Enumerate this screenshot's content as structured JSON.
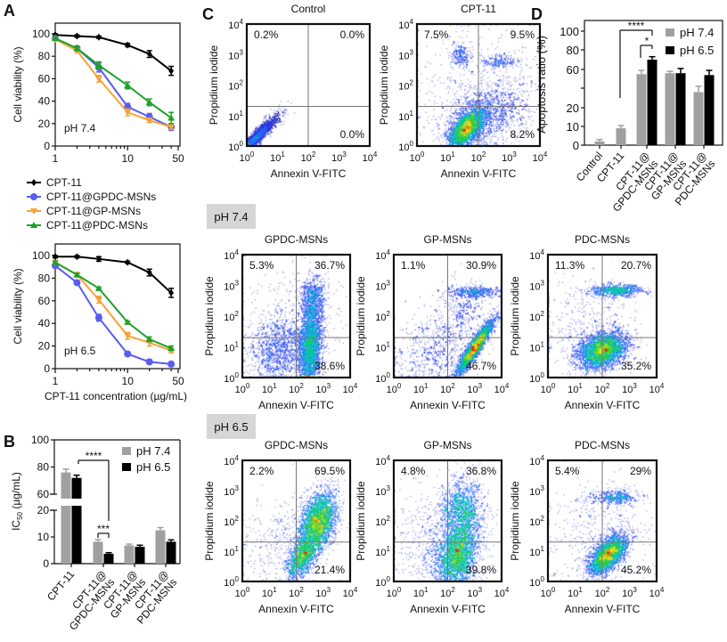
{
  "panel_labels": {
    "a": "A",
    "b": "B",
    "c": "C",
    "d": "D"
  },
  "groups": {
    "ph74": "pH 7.4",
    "ph65": "pH 6.5"
  },
  "chart_data": [
    {
      "type": "line",
      "panel": "A",
      "annotation": "pH 7.4",
      "ylabel": "Cell viability (%)",
      "xlabel": "",
      "xscale": "log",
      "xlim": [
        1,
        50
      ],
      "xticks": [
        "1",
        "10",
        "50"
      ],
      "ylim": [
        0,
        100
      ],
      "yticks": [
        "0",
        "20",
        "40",
        "60",
        "80",
        "100"
      ],
      "x": [
        1,
        2,
        4,
        10,
        20,
        40
      ],
      "series": [
        {
          "name": "CPT-11",
          "color": "#000000",
          "marker": "diamond",
          "values": [
            99,
            98,
            97,
            90,
            82,
            67
          ],
          "errors": [
            1,
            1,
            1,
            1.5,
            3,
            4
          ]
        },
        {
          "name": "CPT-11@GPDC-MSNs",
          "color": "#5a5cf0",
          "marker": "circle",
          "values": [
            96,
            87,
            70,
            35,
            26,
            17
          ],
          "errors": [
            1,
            2,
            4,
            3,
            3,
            3
          ]
        },
        {
          "name": "CPT-11@GP-MSNs",
          "color": "#f5a33a",
          "marker": "triangle-down",
          "values": [
            95,
            85,
            60,
            30,
            23,
            17
          ],
          "errors": [
            1,
            2,
            3,
            3,
            2,
            2
          ]
        },
        {
          "name": "CPT-11@PDC-MSNs",
          "color": "#1fa12a",
          "marker": "triangle-up",
          "values": [
            96,
            87,
            72,
            54,
            39,
            25
          ],
          "errors": [
            1,
            2,
            3,
            3,
            3,
            5
          ]
        }
      ]
    },
    {
      "type": "line",
      "panel": "A",
      "annotation": "pH 6.5",
      "ylabel": "Cell viability (%)",
      "xlabel": "CPT-11 concentration (µg/mL)",
      "xscale": "log",
      "xlim": [
        1,
        50
      ],
      "xticks": [
        "1",
        "10",
        "50"
      ],
      "ylim": [
        0,
        100
      ],
      "yticks": [
        "0",
        "20",
        "40",
        "60",
        "80",
        "100"
      ],
      "x": [
        1,
        2,
        4,
        10,
        20,
        40
      ],
      "series": [
        {
          "name": "CPT-11",
          "color": "#000000",
          "marker": "diamond",
          "values": [
            99,
            99,
            97,
            94,
            85,
            67
          ],
          "errors": [
            1,
            1,
            2,
            1,
            3,
            4
          ]
        },
        {
          "name": "CPT-11@GPDC-MSNs",
          "color": "#5a5cf0",
          "marker": "circle",
          "values": [
            91,
            76,
            45,
            13,
            6,
            4
          ],
          "errors": [
            1,
            1,
            3,
            1,
            2,
            2
          ]
        },
        {
          "name": "CPT-11@GP-MSNs",
          "color": "#f5a33a",
          "marker": "triangle-down",
          "values": [
            94,
            83,
            61,
            29,
            23,
            16
          ],
          "errors": [
            1,
            2,
            3,
            3,
            3,
            2
          ]
        },
        {
          "name": "CPT-11@PDC-MSNs",
          "color": "#1fa12a",
          "marker": "triangle-up",
          "values": [
            94,
            83,
            71,
            41,
            26,
            18
          ],
          "errors": [
            1,
            1,
            1,
            1,
            2,
            2
          ]
        }
      ]
    },
    {
      "type": "bar",
      "panel": "B",
      "ylabel_main": "IC",
      "ylabel_sub": "50",
      "ylabel_unit": " (µg/mL)",
      "yticks": [
        "0",
        "10",
        "20",
        "60",
        "80",
        "100"
      ],
      "ybreak": [
        20,
        60
      ],
      "ylim": [
        0,
        100
      ],
      "categories": [
        [
          "CPT-11"
        ],
        [
          "CPT-11@",
          "GPDC-MSNs"
        ],
        [
          "CPT-11@",
          "GP-MSNs"
        ],
        [
          "CPT-11@",
          "PDC-MSNs"
        ]
      ],
      "legend": "top-right",
      "series": [
        {
          "name": "pH 7.4",
          "color": "#a0a0a0",
          "values": [
            76,
            8.2,
            6.8,
            12.5
          ],
          "errors": [
            2.5,
            0.8,
            0.5,
            1.0
          ]
        },
        {
          "name": "pH 6.5",
          "color": "#000000",
          "values": [
            72,
            3.7,
            6.3,
            8.2
          ],
          "errors": [
            2.0,
            0.4,
            0.6,
            0.7
          ]
        }
      ],
      "significance": [
        {
          "label": "****"
        },
        {
          "label": "***"
        }
      ]
    },
    {
      "type": "bar",
      "panel": "D",
      "ylabel": "Apoptosis ratio (%)",
      "yticks": [
        0,
        10,
        20,
        40,
        60,
        80,
        100
      ],
      "ytick_labels": [
        "0",
        "10",
        "20",
        "",
        "60",
        "80",
        "100"
      ],
      "ylim": [
        0,
        100
      ],
      "categories": [
        [
          "Control"
        ],
        [
          "CPT-11"
        ],
        [
          "CPT-11@",
          "GPDC-MSNs"
        ],
        [
          "CPT-11@",
          "GP-MSNs"
        ],
        [
          "CPT-11@",
          "PDC-MSNs"
        ]
      ],
      "legend": "top-right",
      "series": [
        {
          "name": "pH 7.4",
          "color": "#a0a0a0",
          "values": [
            2,
            9,
            55,
            56,
            36
          ],
          "errors": [
            1,
            1.5,
            4,
            2,
            6
          ]
        },
        {
          "name": "pH 6.5",
          "color": "#000000",
          "values": [
            null,
            null,
            70,
            56,
            54
          ],
          "errors": [
            null,
            null,
            3,
            5,
            5
          ]
        }
      ],
      "significance": [
        {
          "label": "****"
        },
        {
          "label": "*"
        }
      ]
    },
    {
      "type": "scatter",
      "panel": "C",
      "group": "",
      "title": "Control",
      "xlabel": "Annexin V-FITC",
      "ylabel": "Propidium iodide",
      "scale": "log",
      "xlim": [
        1,
        10000
      ],
      "ylim": [
        1,
        10000
      ],
      "tick_base": "10",
      "tick_exponents": [
        "0",
        "1",
        "2",
        "3",
        "4"
      ],
      "gates": {
        "x": 100,
        "y": 20
      },
      "quadrants": {
        "upper_left": "0.2%",
        "upper_right": "0.0%",
        "lower_right": "0.0%"
      }
    },
    {
      "type": "scatter",
      "panel": "C",
      "group": "",
      "title": "CPT-11",
      "xlabel": "Annexin V-FITC",
      "ylabel": "Propidium iodide",
      "scale": "log",
      "xlim": [
        1,
        10000
      ],
      "ylim": [
        1,
        10000
      ],
      "tick_base": "10",
      "tick_exponents": [
        "0",
        "1",
        "2",
        "3",
        "4"
      ],
      "gates": {
        "x": 100,
        "y": 20
      },
      "quadrants": {
        "upper_left": "7.5%",
        "upper_right": "9.5%",
        "lower_right": "8.2%"
      }
    },
    {
      "type": "scatter",
      "panel": "C",
      "group": "pH 7.4",
      "title": "GPDC-MSNs",
      "xlabel": "Annexin V-FITC",
      "ylabel": "Propidium iodide",
      "scale": "log",
      "xlim": [
        1,
        10000
      ],
      "ylim": [
        1,
        10000
      ],
      "tick_base": "10",
      "tick_exponents": [
        "0",
        "1",
        "2",
        "3",
        "4"
      ],
      "gates": {
        "x": 100,
        "y": 20
      },
      "quadrants": {
        "upper_left": "5.3%",
        "upper_right": "36.7%",
        "lower_right": "38.6%"
      }
    },
    {
      "type": "scatter",
      "panel": "C",
      "group": "pH 7.4",
      "title": "GP-MSNs",
      "xlabel": "Annexin V-FITC",
      "ylabel": "Propidium iodide",
      "scale": "log",
      "xlim": [
        1,
        10000
      ],
      "ylim": [
        1,
        10000
      ],
      "tick_base": "10",
      "tick_exponents": [
        "0",
        "1",
        "2",
        "3",
        "4"
      ],
      "gates": {
        "x": 100,
        "y": 20
      },
      "quadrants": {
        "upper_left": "1.1%",
        "upper_right": "30.9%",
        "lower_right": "46.7%"
      }
    },
    {
      "type": "scatter",
      "panel": "C",
      "group": "pH 7.4",
      "title": "PDC-MSNs",
      "xlabel": "Annexin V-FITC",
      "ylabel": "Propidium iodide",
      "scale": "log",
      "xlim": [
        1,
        10000
      ],
      "ylim": [
        1,
        10000
      ],
      "tick_base": "10",
      "tick_exponents": [
        "0",
        "1",
        "2",
        "3",
        "4"
      ],
      "gates": {
        "x": 100,
        "y": 20
      },
      "quadrants": {
        "upper_left": "11.3%",
        "upper_right": "20.7%",
        "lower_right": "35.2%"
      }
    },
    {
      "type": "scatter",
      "panel": "C",
      "group": "pH 6.5",
      "title": "GPDC-MSNs",
      "xlabel": "Annexin V-FITC",
      "ylabel": "Propidium iodide",
      "scale": "log",
      "xlim": [
        1,
        10000
      ],
      "ylim": [
        1,
        10000
      ],
      "tick_base": "10",
      "tick_exponents": [
        "0",
        "1",
        "2",
        "3",
        "4"
      ],
      "gates": {
        "x": 100,
        "y": 20
      },
      "quadrants": {
        "upper_left": "2.2%",
        "upper_right": "69.5%",
        "lower_right": "21.4%"
      }
    },
    {
      "type": "scatter",
      "panel": "C",
      "group": "pH 6.5",
      "title": "GP-MSNs",
      "xlabel": "Annexin V-FITC",
      "ylabel": "Propidium iodide",
      "scale": "log",
      "xlim": [
        1,
        10000
      ],
      "ylim": [
        1,
        10000
      ],
      "tick_base": "10",
      "tick_exponents": [
        "0",
        "1",
        "2",
        "3",
        "4"
      ],
      "gates": {
        "x": 100,
        "y": 20
      },
      "quadrants": {
        "upper_left": "4.8%",
        "upper_right": "36.8%",
        "lower_right": "39.8%"
      }
    },
    {
      "type": "scatter",
      "panel": "C",
      "group": "pH 6.5",
      "title": "PDC-MSNs",
      "xlabel": "Annexin V-FITC",
      "ylabel": "Propidium iodide",
      "scale": "log",
      "xlim": [
        1,
        10000
      ],
      "ylim": [
        1,
        10000
      ],
      "tick_base": "10",
      "tick_exponents": [
        "0",
        "1",
        "2",
        "3",
        "4"
      ],
      "gates": {
        "x": 100,
        "y": 20
      },
      "quadrants": {
        "upper_left": "5.4%",
        "upper_right": "29%",
        "lower_right": "45.2%"
      }
    }
  ]
}
